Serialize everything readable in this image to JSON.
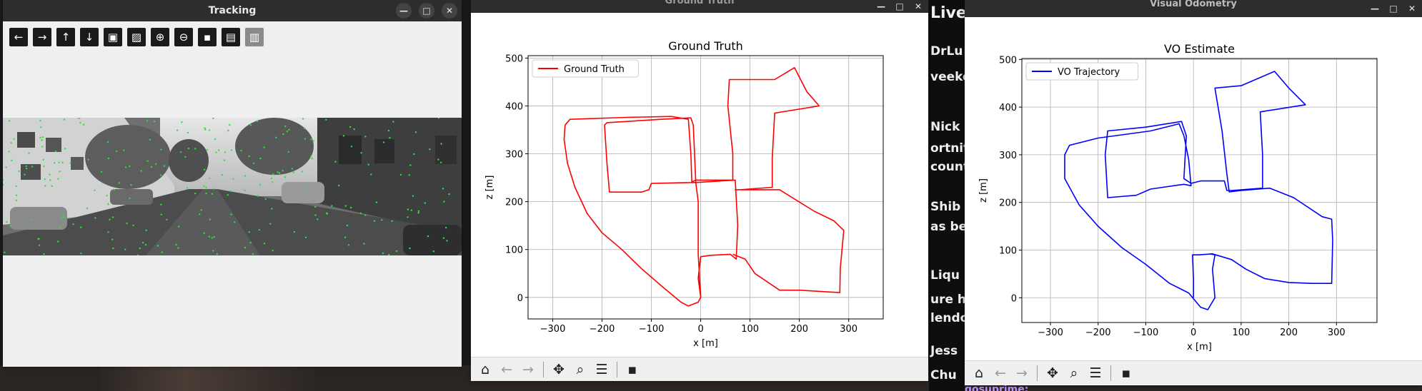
{
  "tracking": {
    "title": "Tracking",
    "toolbar": [
      {
        "icon": "arrow-left-icon",
        "glyph": "←"
      },
      {
        "icon": "arrow-right-icon",
        "glyph": "→"
      },
      {
        "icon": "arrow-up-icon",
        "glyph": "↑"
      },
      {
        "icon": "arrow-down-icon",
        "glyph": "↓"
      },
      {
        "icon": "image-icon",
        "glyph": "▣"
      },
      {
        "icon": "image-alt-icon",
        "glyph": "▨"
      },
      {
        "icon": "zoom-in-icon",
        "glyph": "⊕"
      },
      {
        "icon": "zoom-out-icon",
        "glyph": "⊖"
      },
      {
        "icon": "save-icon",
        "glyph": "▪"
      },
      {
        "icon": "clipboard-icon",
        "glyph": "▤"
      },
      {
        "icon": "properties-icon",
        "glyph": "▥"
      }
    ]
  },
  "ground_truth": {
    "window_title": "Ground Truth",
    "toolbar": [
      "home-icon",
      "back-icon",
      "forward-icon",
      "pan-icon",
      "zoom-icon",
      "configure-icon",
      "save-icon"
    ]
  },
  "vo": {
    "window_title": "Visual Odometry",
    "toolbar": [
      "home-icon",
      "back-icon",
      "forward-icon",
      "pan-icon",
      "zoom-icon",
      "configure-icon",
      "save-icon"
    ]
  },
  "chat": {
    "lines": [
      "Live c",
      "DrLu",
      "veeker",
      "Nick",
      "ortnit",
      "counto",
      "Shib",
      "as be",
      "Liqu",
      "ure ha",
      "lendo",
      "Jess",
      "Chu"
    ],
    "bottom": "gosuprime:"
  },
  "colors": {
    "gt": "#ff0000",
    "vo": "#0000ff",
    "grid": "#b0b0b0"
  },
  "chart_data": [
    {
      "type": "line",
      "title": "Ground Truth",
      "xlabel": "x [m]",
      "ylabel": "z [m]",
      "xlim": [
        -350,
        370
      ],
      "ylim": [
        -45,
        505
      ],
      "xticks": [
        -300,
        -200,
        -100,
        0,
        100,
        200,
        300
      ],
      "yticks": [
        0,
        100,
        200,
        300,
        400,
        500
      ],
      "xtick_labels": [
        "−300",
        "−200",
        "−100",
        "0",
        "100",
        "200",
        "300"
      ],
      "ytick_labels": [
        "0",
        "100",
        "200",
        "300",
        "400",
        "500"
      ],
      "grid": true,
      "legend": "top-left",
      "series": [
        {
          "name": "Ground Truth",
          "color": "#ff0000",
          "points": [
            [
              0,
              0
            ],
            [
              -5,
              -10
            ],
            [
              -25,
              -18
            ],
            [
              -40,
              -10
            ],
            [
              -75,
              20
            ],
            [
              -120,
              60
            ],
            [
              -160,
              100
            ],
            [
              -200,
              135
            ],
            [
              -230,
              175
            ],
            [
              -255,
              230
            ],
            [
              -270,
              280
            ],
            [
              -277,
              330
            ],
            [
              -275,
              360
            ],
            [
              -265,
              372
            ],
            [
              -150,
              376
            ],
            [
              -60,
              378
            ],
            [
              -25,
              372
            ],
            [
              -20,
              300
            ],
            [
              -18,
              240
            ],
            [
              -10,
              240
            ],
            [
              70,
              245
            ],
            [
              75,
              150
            ],
            [
              72,
              80
            ],
            [
              60,
              90
            ],
            [
              20,
              88
            ],
            [
              0,
              85
            ],
            [
              -5,
              40
            ],
            [
              0,
              0
            ],
            [
              -5,
              90
            ],
            [
              -5,
              200
            ],
            [
              -10,
              240
            ],
            [
              -15,
              360
            ],
            [
              -20,
              375
            ],
            [
              -80,
              372
            ],
            [
              -190,
              365
            ],
            [
              -195,
              360
            ],
            [
              -190,
              280
            ],
            [
              -185,
              220
            ],
            [
              -120,
              220
            ],
            [
              -105,
              225
            ],
            [
              -100,
              238
            ],
            [
              -20,
              240
            ],
            [
              -10,
              245
            ],
            [
              65,
              245
            ],
            [
              65,
              300
            ],
            [
              55,
              400
            ],
            [
              58,
              455
            ],
            [
              150,
              455
            ],
            [
              190,
              480
            ],
            [
              215,
              430
            ],
            [
              240,
              400
            ],
            [
              150,
              385
            ],
            [
              145,
              290
            ],
            [
              145,
              230
            ],
            [
              80,
              225
            ],
            [
              70,
              225
            ],
            [
              160,
              225
            ],
            [
              230,
              180
            ],
            [
              270,
              160
            ],
            [
              290,
              140
            ],
            [
              283,
              60
            ],
            [
              282,
              10
            ],
            [
              200,
              15
            ],
            [
              160,
              15
            ],
            [
              110,
              50
            ],
            [
              90,
              80
            ],
            [
              65,
              90
            ]
          ]
        }
      ]
    },
    {
      "type": "line",
      "title": "VO Estimate",
      "xlabel": "x [m]",
      "ylabel": "z [m]",
      "xlim": [
        -360,
        385
      ],
      "ylim": [
        -52,
        502
      ],
      "xticks": [
        -300,
        -200,
        -100,
        0,
        100,
        200,
        300
      ],
      "yticks": [
        0,
        100,
        200,
        300,
        400,
        500
      ],
      "xtick_labels": [
        "−300",
        "−200",
        "−100",
        "0",
        "100",
        "200",
        "300"
      ],
      "ytick_labels": [
        "0",
        "100",
        "200",
        "300",
        "400",
        "500"
      ],
      "grid": true,
      "legend": "top-left",
      "series": [
        {
          "name": "VO Trajectory",
          "color": "#0000ff",
          "points": [
            [
              0,
              0
            ],
            [
              0,
              40
            ],
            [
              -2,
              90
            ],
            [
              10,
              90
            ],
            [
              40,
              92
            ],
            [
              80,
              80
            ],
            [
              110,
              60
            ],
            [
              150,
              40
            ],
            [
              200,
              32
            ],
            [
              250,
              30
            ],
            [
              290,
              30
            ],
            [
              292,
              120
            ],
            [
              290,
              165
            ],
            [
              270,
              170
            ],
            [
              210,
              210
            ],
            [
              160,
              230
            ],
            [
              100,
              225
            ],
            [
              75,
              222
            ],
            [
              70,
              260
            ],
            [
              60,
              350
            ],
            [
              45,
              440
            ],
            [
              100,
              445
            ],
            [
              170,
              475
            ],
            [
              200,
              440
            ],
            [
              235,
              405
            ],
            [
              140,
              390
            ],
            [
              145,
              300
            ],
            [
              145,
              230
            ],
            [
              80,
              225
            ],
            [
              70,
              225
            ],
            [
              65,
              245
            ],
            [
              15,
              245
            ],
            [
              -5,
              240
            ],
            [
              -20,
              250
            ],
            [
              -15,
              340
            ],
            [
              -25,
              370
            ],
            [
              -100,
              358
            ],
            [
              -180,
              350
            ],
            [
              -185,
              300
            ],
            [
              -180,
              210
            ],
            [
              -120,
              215
            ],
            [
              -90,
              228
            ],
            [
              -20,
              238
            ],
            [
              -5,
              235
            ],
            [
              -10,
              290
            ],
            [
              -20,
              340
            ],
            [
              -30,
              365
            ],
            [
              -90,
              350
            ],
            [
              -200,
              335
            ],
            [
              -260,
              320
            ],
            [
              -270,
              300
            ],
            [
              -270,
              250
            ],
            [
              -240,
              195
            ],
            [
              -200,
              150
            ],
            [
              -150,
              105
            ],
            [
              -100,
              70
            ],
            [
              -50,
              30
            ],
            [
              -10,
              10
            ],
            [
              15,
              -20
            ],
            [
              30,
              -25
            ],
            [
              45,
              0
            ],
            [
              40,
              60
            ],
            [
              45,
              90
            ],
            [
              35,
              92
            ]
          ]
        }
      ]
    }
  ]
}
